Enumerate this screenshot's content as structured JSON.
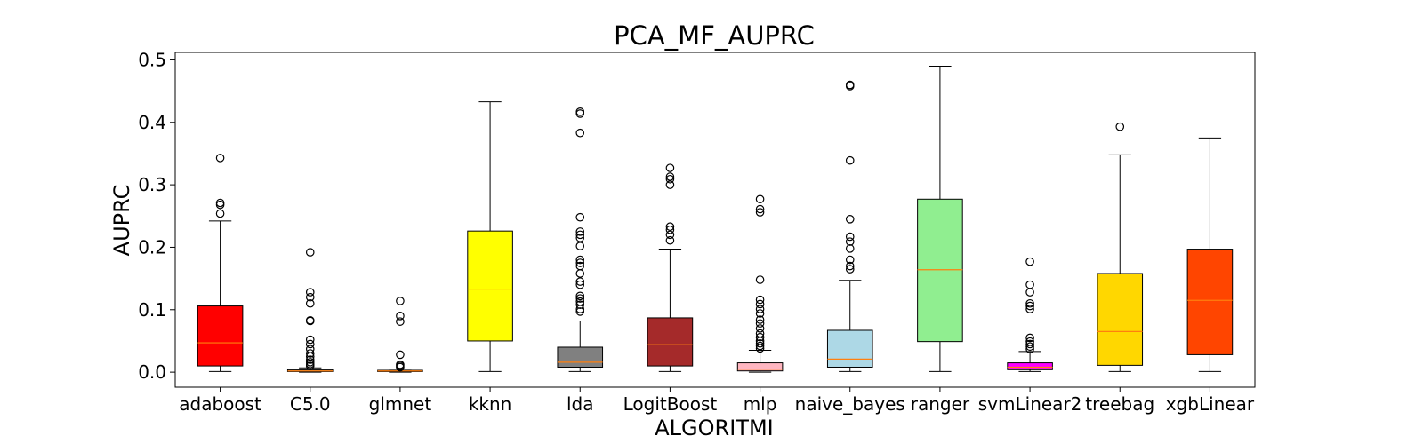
{
  "chart_data": {
    "type": "boxplot",
    "title": "PCA_MF_AUPRC",
    "xlabel": "ALGORITMI",
    "ylabel": "AUPRC",
    "ylim": [
      -0.024,
      0.512
    ],
    "yticks": [
      "0.0",
      "0.1",
      "0.2",
      "0.3",
      "0.4",
      "0.5"
    ],
    "grid": false,
    "categories": [
      "adaboost",
      "C5.0",
      "glmnet",
      "kknn",
      "lda",
      "LogitBoost",
      "mlp",
      "naive_bayes",
      "ranger",
      "svmLinear2",
      "treebag",
      "xgbLinear"
    ],
    "boxes": [
      {
        "label": "adaboost",
        "color": "#ff0000",
        "whisker_low": 0.001,
        "q1": 0.01,
        "median": 0.047,
        "q3": 0.106,
        "whisker_high": 0.242,
        "outliers": [
          0.254,
          0.268,
          0.271,
          0.343
        ]
      },
      {
        "label": "C5.0",
        "color": "#808080",
        "whisker_low": 0.0,
        "q1": 0.001,
        "median": 0.002,
        "q3": 0.004,
        "whisker_high": 0.007,
        "outliers": [
          0.01,
          0.013,
          0.016,
          0.02,
          0.025,
          0.03,
          0.037,
          0.045,
          0.052,
          0.082,
          0.083,
          0.11,
          0.12,
          0.128,
          0.192
        ]
      },
      {
        "label": "glmnet",
        "color": "#808080",
        "whisker_low": 0.0,
        "q1": 0.001,
        "median": 0.002,
        "q3": 0.003,
        "whisker_high": 0.005,
        "outliers": [
          0.008,
          0.01,
          0.012,
          0.028,
          0.081,
          0.09,
          0.114
        ]
      },
      {
        "label": "kknn",
        "color": "#ffff00",
        "whisker_low": 0.001,
        "q1": 0.05,
        "median": 0.133,
        "q3": 0.226,
        "whisker_high": 0.433,
        "outliers": []
      },
      {
        "label": "lda",
        "color": "#808080",
        "whisker_low": 0.001,
        "q1": 0.008,
        "median": 0.016,
        "q3": 0.04,
        "whisker_high": 0.082,
        "outliers": [
          0.097,
          0.101,
          0.108,
          0.113,
          0.118,
          0.122,
          0.14,
          0.145,
          0.158,
          0.17,
          0.175,
          0.18,
          0.202,
          0.215,
          0.22,
          0.225,
          0.248,
          0.383,
          0.414,
          0.417
        ]
      },
      {
        "label": "LogitBoost",
        "color": "#a52a2a",
        "whisker_low": 0.001,
        "q1": 0.01,
        "median": 0.044,
        "q3": 0.087,
        "whisker_high": 0.197,
        "outliers": [
          0.211,
          0.22,
          0.228,
          0.233,
          0.3,
          0.309,
          0.313,
          0.327
        ]
      },
      {
        "label": "mlp",
        "color": "#ffb6c1",
        "whisker_low": 0.0,
        "q1": 0.002,
        "median": 0.005,
        "q3": 0.015,
        "whisker_high": 0.035,
        "outliers": [
          0.038,
          0.042,
          0.046,
          0.05,
          0.056,
          0.062,
          0.07,
          0.078,
          0.084,
          0.094,
          0.101,
          0.109,
          0.116,
          0.148,
          0.256,
          0.261,
          0.277
        ]
      },
      {
        "label": "naive_bayes",
        "color": "#add8e6",
        "whisker_low": 0.001,
        "q1": 0.008,
        "median": 0.021,
        "q3": 0.067,
        "whisker_high": 0.147,
        "outliers": [
          0.165,
          0.17,
          0.18,
          0.198,
          0.209,
          0.217,
          0.245,
          0.339,
          0.458,
          0.46
        ]
      },
      {
        "label": "ranger",
        "color": "#90ee90",
        "whisker_low": 0.001,
        "q1": 0.049,
        "median": 0.164,
        "q3": 0.277,
        "whisker_high": 0.49,
        "outliers": []
      },
      {
        "label": "svmLinear2",
        "color": "#ff00ff",
        "whisker_low": 0.001,
        "q1": 0.004,
        "median": 0.008,
        "q3": 0.015,
        "whisker_high": 0.033,
        "outliers": [
          0.037,
          0.041,
          0.045,
          0.049,
          0.055,
          0.101,
          0.106,
          0.11,
          0.128,
          0.14,
          0.177
        ]
      },
      {
        "label": "treebag",
        "color": "#ffd700",
        "whisker_low": 0.001,
        "q1": 0.011,
        "median": 0.065,
        "q3": 0.158,
        "whisker_high": 0.348,
        "outliers": [
          0.393
        ]
      },
      {
        "label": "xgbLinear",
        "color": "#ff4500",
        "whisker_low": 0.001,
        "q1": 0.028,
        "median": 0.115,
        "q3": 0.197,
        "whisker_high": 0.375,
        "outliers": []
      }
    ],
    "median_color": "#ff7f0e"
  }
}
